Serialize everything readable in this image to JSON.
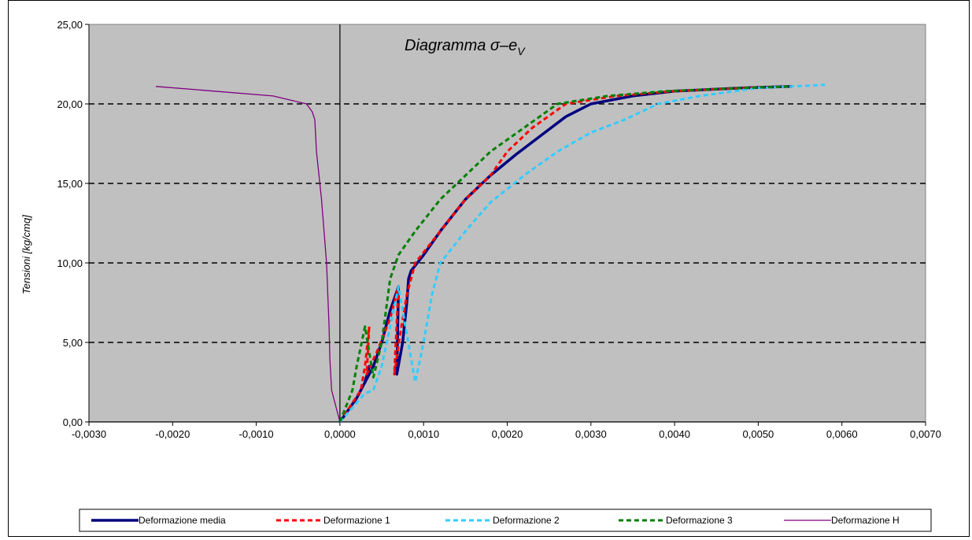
{
  "chart_data": {
    "type": "line",
    "title": "Diagramma σ–e",
    "title_subscript": "V",
    "xlabel": "",
    "ylabel": "Tensioni [kg/cmq]",
    "xlim": [
      -0.003,
      0.007
    ],
    "ylim": [
      0,
      25
    ],
    "x_ticks": [
      "-0,0030",
      "-0,0020",
      "-0,0010",
      "0,0000",
      "0,0010",
      "0,0020",
      "0,0030",
      "0,0040",
      "0,0050",
      "0,0060",
      "0,0070"
    ],
    "x_tick_values": [
      -0.003,
      -0.002,
      -0.001,
      0.0,
      0.001,
      0.002,
      0.003,
      0.004,
      0.005,
      0.006,
      0.007
    ],
    "y_ticks": [
      "0,00",
      "5,00",
      "10,00",
      "15,00",
      "20,00",
      "25,00"
    ],
    "y_tick_values": [
      0,
      5,
      10,
      15,
      20,
      25
    ],
    "grid": "horizontal dashed",
    "legend_position": "bottom",
    "background_color": "#c0c0c0",
    "series": [
      {
        "name": "Deformazione media",
        "color": "#00007f",
        "style": "solid-thick",
        "points": [
          [
            0,
            0
          ],
          [
            0.0002,
            1.5
          ],
          [
            0.0003,
            2.5
          ],
          [
            0.00035,
            3.5
          ],
          [
            0.0003,
            2.5
          ],
          [
            0.0004,
            3.5
          ],
          [
            0.0005,
            5
          ],
          [
            0.0006,
            7
          ],
          [
            0.0007,
            8.5
          ],
          [
            0.00068,
            3
          ],
          [
            0.00075,
            5
          ],
          [
            0.0008,
            7.5
          ],
          [
            0.00082,
            9
          ],
          [
            0.00085,
            9.5
          ],
          [
            0.001,
            10.5
          ],
          [
            0.0012,
            12
          ],
          [
            0.0015,
            14
          ],
          [
            0.0018,
            15.5
          ],
          [
            0.0021,
            16.8
          ],
          [
            0.0024,
            18
          ],
          [
            0.0027,
            19.2
          ],
          [
            0.003,
            20
          ],
          [
            0.0035,
            20.5
          ],
          [
            0.004,
            20.8
          ],
          [
            0.0048,
            21
          ],
          [
            0.0054,
            21.1
          ]
        ]
      },
      {
        "name": "Deformazione 1",
        "color": "#ff0000",
        "style": "dashed",
        "points": [
          [
            0,
            0
          ],
          [
            0.00025,
            2
          ],
          [
            0.0003,
            3.5
          ],
          [
            0.00035,
            6
          ],
          [
            0.00032,
            3
          ],
          [
            0.00045,
            4.5
          ],
          [
            0.0006,
            6.5
          ],
          [
            0.0007,
            8.5
          ],
          [
            0.00065,
            3
          ],
          [
            0.00072,
            5.5
          ],
          [
            0.0008,
            8
          ],
          [
            0.0009,
            10
          ],
          [
            0.0012,
            12
          ],
          [
            0.0015,
            14
          ],
          [
            0.0018,
            15.5
          ],
          [
            0.002,
            17
          ],
          [
            0.0023,
            18.5
          ],
          [
            0.0027,
            20
          ],
          [
            0.0033,
            20.5
          ],
          [
            0.004,
            20.8
          ],
          [
            0.0048,
            21
          ],
          [
            0.0054,
            21.1
          ]
        ]
      },
      {
        "name": "Deformazione 2",
        "color": "#33ccff",
        "style": "dashed",
        "points": [
          [
            0,
            0
          ],
          [
            0.0003,
            1.8
          ],
          [
            0.0004,
            2
          ],
          [
            0.0005,
            3.5
          ],
          [
            0.0006,
            6
          ],
          [
            0.0007,
            8.5
          ],
          [
            0.0009,
            2.5
          ],
          [
            0.001,
            5
          ],
          [
            0.0011,
            8
          ],
          [
            0.0012,
            10
          ],
          [
            0.0015,
            12
          ],
          [
            0.0018,
            13.8
          ],
          [
            0.0022,
            15.5
          ],
          [
            0.0026,
            17
          ],
          [
            0.003,
            18.2
          ],
          [
            0.0034,
            19
          ],
          [
            0.0038,
            20
          ],
          [
            0.0043,
            20.5
          ],
          [
            0.005,
            21
          ],
          [
            0.0058,
            21.2
          ]
        ]
      },
      {
        "name": "Deformazione 3",
        "color": "#008000",
        "style": "dashed",
        "points": [
          [
            0,
            0
          ],
          [
            0.00015,
            2
          ],
          [
            0.0002,
            3.5
          ],
          [
            0.0003,
            6
          ],
          [
            0.0004,
            2.8
          ],
          [
            0.0005,
            5
          ],
          [
            0.00055,
            7
          ],
          [
            0.0006,
            9
          ],
          [
            0.0007,
            10.5
          ],
          [
            0.0009,
            12
          ],
          [
            0.0012,
            14
          ],
          [
            0.0015,
            15.5
          ],
          [
            0.0018,
            17
          ],
          [
            0.0022,
            18.5
          ],
          [
            0.0026,
            20
          ],
          [
            0.0032,
            20.5
          ],
          [
            0.0039,
            20.8
          ],
          [
            0.0048,
            21
          ],
          [
            0.0054,
            21.1
          ]
        ]
      },
      {
        "name": "Deformazione H",
        "color": "#800080",
        "style": "solid-thin",
        "points": [
          [
            0,
            0
          ],
          [
            -0.0001,
            2
          ],
          [
            -0.00012,
            4
          ],
          [
            -0.00013,
            6
          ],
          [
            -0.00016,
            10
          ],
          [
            -0.00022,
            14
          ],
          [
            -0.00028,
            17
          ],
          [
            -0.0003,
            19
          ],
          [
            -0.00033,
            19.5
          ],
          [
            -0.0004,
            20
          ],
          [
            -0.0008,
            20.5
          ],
          [
            -0.0015,
            20.8
          ],
          [
            -0.0022,
            21.1
          ]
        ]
      }
    ]
  }
}
